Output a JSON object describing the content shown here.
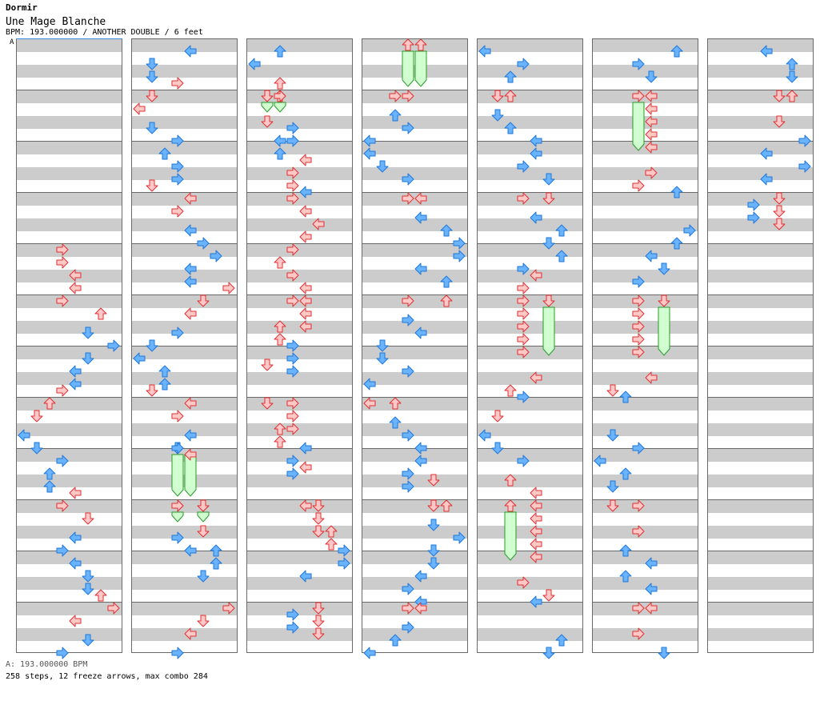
{
  "header": {
    "artist": "Dormir",
    "title": "Une Mage Blanche",
    "info": "BPM: 193.000000 / ANOTHER DOUBLE / 6 feet"
  },
  "chart": {
    "marker_label": "A",
    "columns": 7,
    "measures_per_column": 12,
    "colors": {
      "blue_fill": "#6ab3ff",
      "blue_stroke": "#1f78d8",
      "red_fill": "#ffc8c8",
      "red_stroke": "#e03030",
      "freeze_fill": "#d0ffd0",
      "freeze_stroke": "#2a9a2a"
    }
  },
  "footer": {
    "bpm_line": "A: 193.000000 BPM",
    "stats_line": "258 steps, 12 freeze arrows, max combo 284"
  }
}
